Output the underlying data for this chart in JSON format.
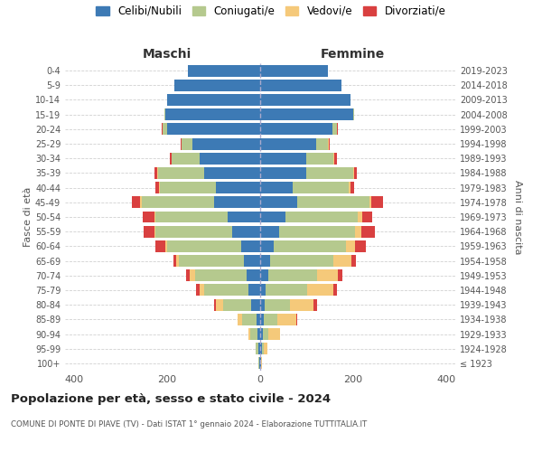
{
  "age_groups": [
    "100+",
    "95-99",
    "90-94",
    "85-89",
    "80-84",
    "75-79",
    "70-74",
    "65-69",
    "60-64",
    "55-59",
    "50-54",
    "45-49",
    "40-44",
    "35-39",
    "30-34",
    "25-29",
    "20-24",
    "15-19",
    "10-14",
    "5-9",
    "0-4"
  ],
  "birth_years": [
    "≤ 1923",
    "1924-1928",
    "1929-1933",
    "1934-1938",
    "1939-1943",
    "1944-1948",
    "1949-1953",
    "1954-1958",
    "1959-1963",
    "1964-1968",
    "1969-1973",
    "1974-1978",
    "1979-1983",
    "1984-1988",
    "1989-1993",
    "1994-1998",
    "1999-2003",
    "2004-2008",
    "2009-2013",
    "2014-2018",
    "2019-2023"
  ],
  "maschi": {
    "celibi": [
      2,
      4,
      6,
      8,
      20,
      25,
      30,
      35,
      40,
      60,
      70,
      100,
      95,
      120,
      130,
      145,
      200,
      205,
      200,
      185,
      155
    ],
    "coniugati": [
      1,
      5,
      15,
      30,
      60,
      95,
      110,
      140,
      160,
      165,
      155,
      155,
      120,
      100,
      60,
      25,
      10,
      2,
      0,
      0,
      0
    ],
    "vedovi": [
      0,
      1,
      5,
      10,
      15,
      10,
      12,
      5,
      5,
      3,
      3,
      3,
      2,
      2,
      0,
      0,
      0,
      0,
      0,
      0,
      0
    ],
    "divorziati": [
      0,
      0,
      0,
      0,
      5,
      8,
      8,
      6,
      20,
      22,
      25,
      18,
      8,
      5,
      5,
      2,
      2,
      0,
      0,
      0,
      0
    ]
  },
  "femmine": {
    "nubili": [
      1,
      3,
      5,
      7,
      10,
      12,
      18,
      22,
      30,
      40,
      55,
      80,
      70,
      100,
      100,
      120,
      155,
      200,
      195,
      175,
      145
    ],
    "coniugate": [
      1,
      5,
      12,
      30,
      55,
      90,
      105,
      135,
      155,
      165,
      155,
      155,
      120,
      100,
      58,
      25,
      10,
      2,
      0,
      0,
      0
    ],
    "vedove": [
      1,
      8,
      25,
      40,
      50,
      55,
      45,
      40,
      20,
      12,
      10,
      5,
      5,
      3,
      2,
      2,
      0,
      0,
      0,
      0,
      0
    ],
    "divorziate": [
      0,
      0,
      0,
      3,
      8,
      8,
      8,
      10,
      22,
      30,
      22,
      25,
      8,
      5,
      5,
      3,
      2,
      0,
      0,
      0,
      0
    ]
  },
  "colors": {
    "celibi": "#3d7ab5",
    "coniugati": "#b5c98e",
    "vedovi": "#f5c97a",
    "divorziati": "#d94040"
  },
  "legend_labels": [
    "Celibi/Nubili",
    "Coniugati/e",
    "Vedovi/e",
    "Divorziati/e"
  ],
  "title": "Popolazione per età, sesso e stato civile - 2024",
  "subtitle": "COMUNE DI PONTE DI PIAVE (TV) - Dati ISTAT 1° gennaio 2024 - Elaborazione TUTTITALIA.IT",
  "xlabel_left": "Maschi",
  "xlabel_right": "Femmine",
  "ylabel_left": "Fasce di età",
  "ylabel_right": "Anni di nascita",
  "xlim": 420,
  "background_color": "#ffffff",
  "grid_color": "#cccccc"
}
